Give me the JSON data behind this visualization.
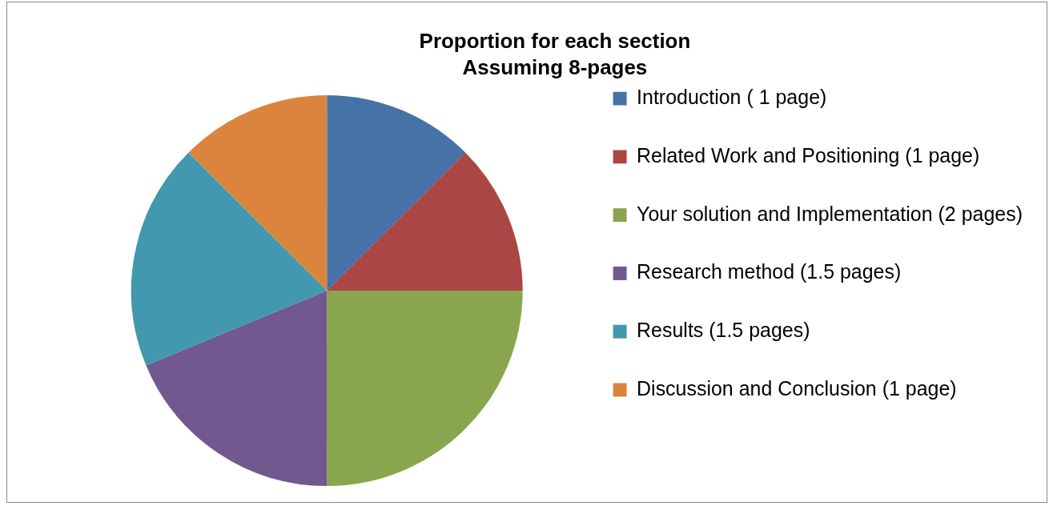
{
  "chart_data": {
    "type": "pie",
    "title": "Proportion for each section",
    "subtitle": "Assuming 8-pages",
    "categories": [
      "Introduction ( 1 page)",
      "Related Work and Positioning (1 page)",
      "Your solution and Implementation (2 pages)",
      "Research method (1.5 pages)",
      "Results (1.5 pages)",
      "Discussion and Conclusion (1 page)"
    ],
    "values": [
      1,
      1,
      2,
      1.5,
      1.5,
      1
    ],
    "colors": [
      "#4572a7",
      "#aa4643",
      "#89a54e",
      "#71588f",
      "#4198af",
      "#db843d"
    ],
    "legend": "right"
  }
}
